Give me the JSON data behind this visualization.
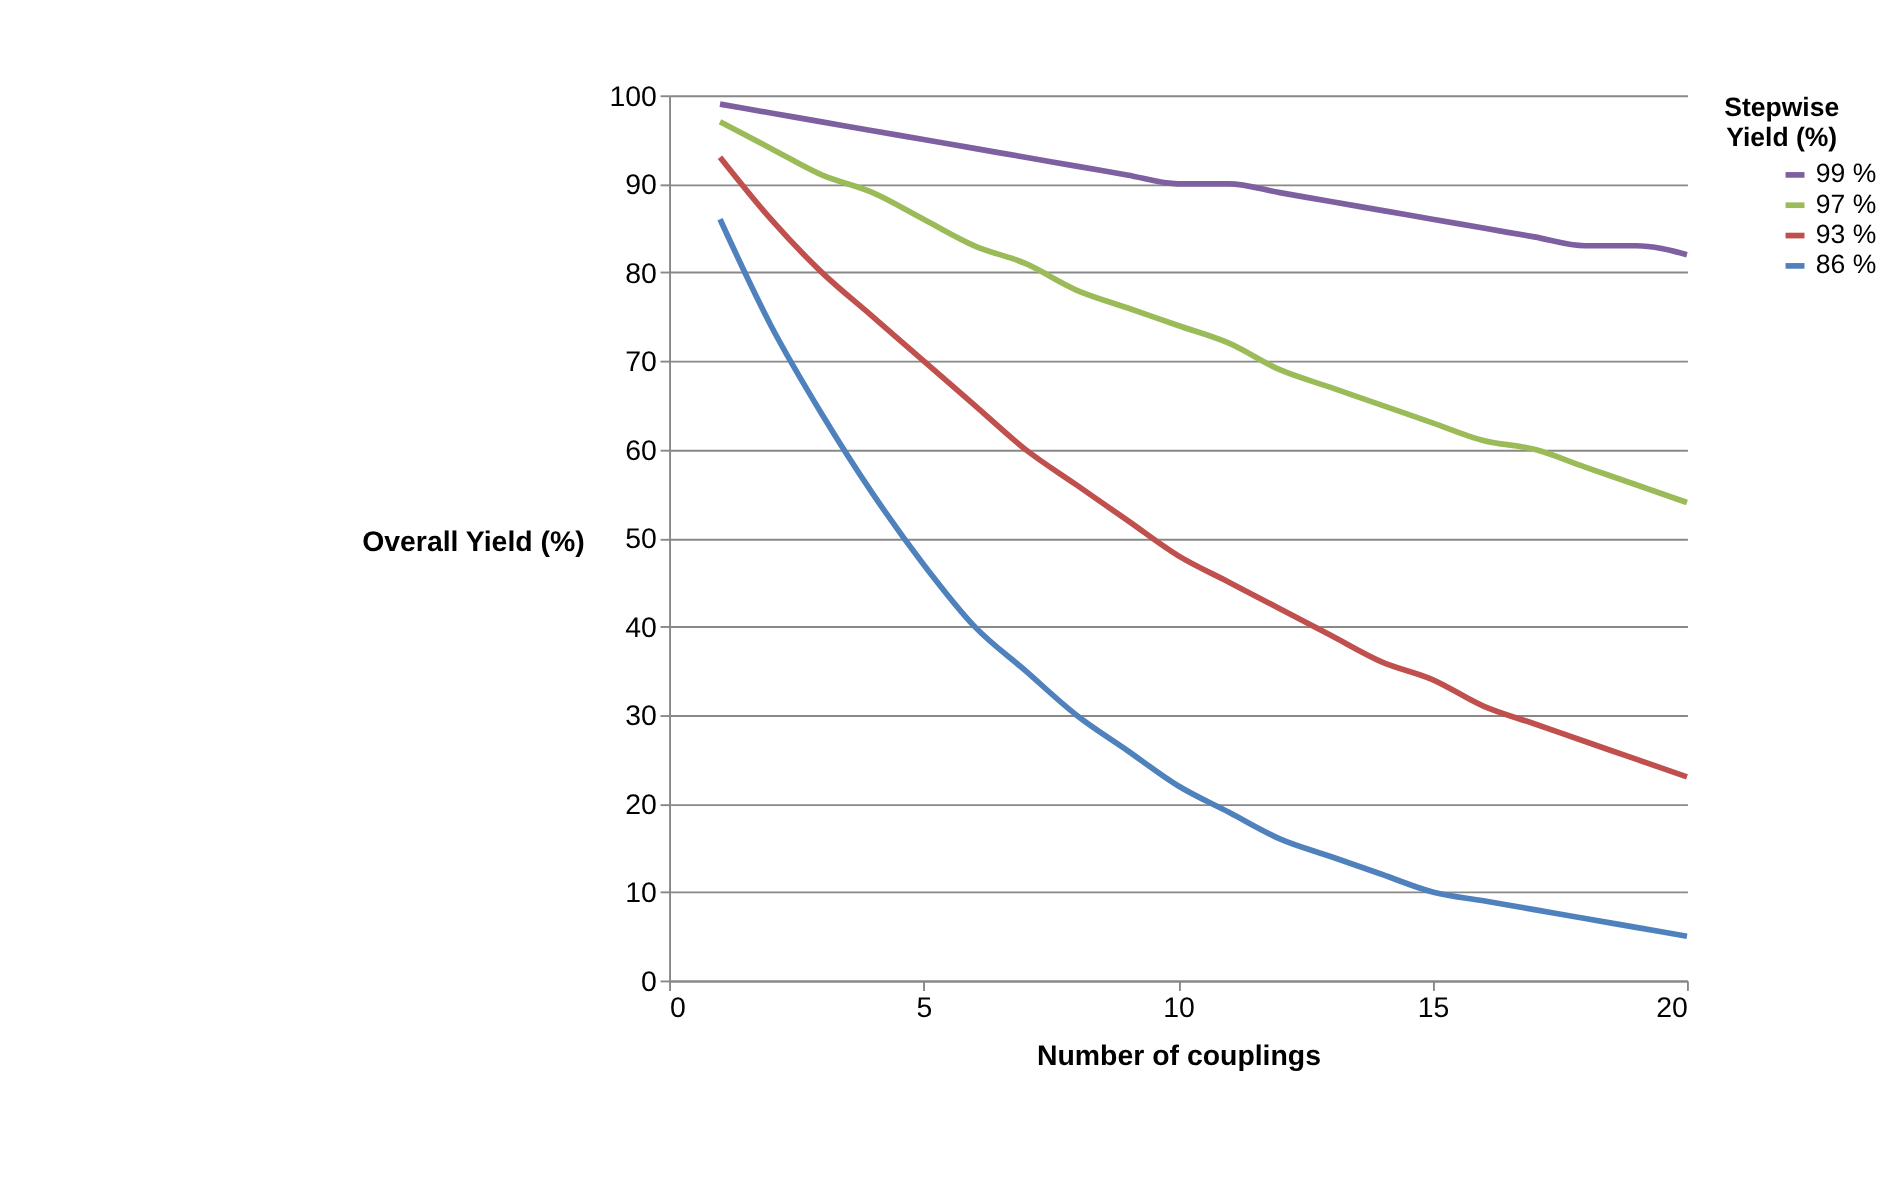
{
  "chart_data": {
    "type": "line",
    "xlabel": "Number of couplings",
    "ylabel": "Overall Yield (%)",
    "legend_title": "Stepwise Yield (%)",
    "x": [
      1,
      2,
      3,
      4,
      5,
      6,
      7,
      8,
      9,
      10,
      11,
      12,
      13,
      14,
      15,
      16,
      17,
      18,
      19,
      20
    ],
    "series": [
      {
        "name": "99 %",
        "color": "#7e60a0",
        "values": [
          99,
          98,
          97,
          96,
          95,
          94,
          93,
          92,
          91,
          90,
          90,
          89,
          88,
          87,
          86,
          85,
          84,
          83,
          83,
          82
        ]
      },
      {
        "name": "97 %",
        "color": "#9bbb59",
        "values": [
          97,
          94,
          91,
          89,
          86,
          83,
          81,
          78,
          76,
          74,
          72,
          69,
          67,
          65,
          63,
          61,
          60,
          58,
          56,
          54
        ]
      },
      {
        "name": "93 %",
        "color": "#c0504d",
        "values": [
          93,
          86,
          80,
          75,
          70,
          65,
          60,
          56,
          52,
          48,
          45,
          42,
          39,
          36,
          34,
          31,
          29,
          27,
          25,
          23
        ]
      },
      {
        "name": "86 %",
        "color": "#4f81bd",
        "values": [
          86,
          74,
          64,
          55,
          47,
          40,
          35,
          30,
          26,
          22,
          19,
          16,
          14,
          12,
          10,
          9,
          8,
          7,
          6,
          5
        ]
      }
    ],
    "xlim": [
      0,
      20
    ],
    "xticks": [
      0,
      5,
      10,
      15,
      20
    ],
    "ylim": [
      0,
      100
    ],
    "yticks": [
      0,
      10,
      20,
      30,
      40,
      50,
      60,
      70,
      80,
      90,
      100
    ],
    "grid": "y",
    "legend": "right",
    "marker": "none",
    "line_style": "solid"
  }
}
